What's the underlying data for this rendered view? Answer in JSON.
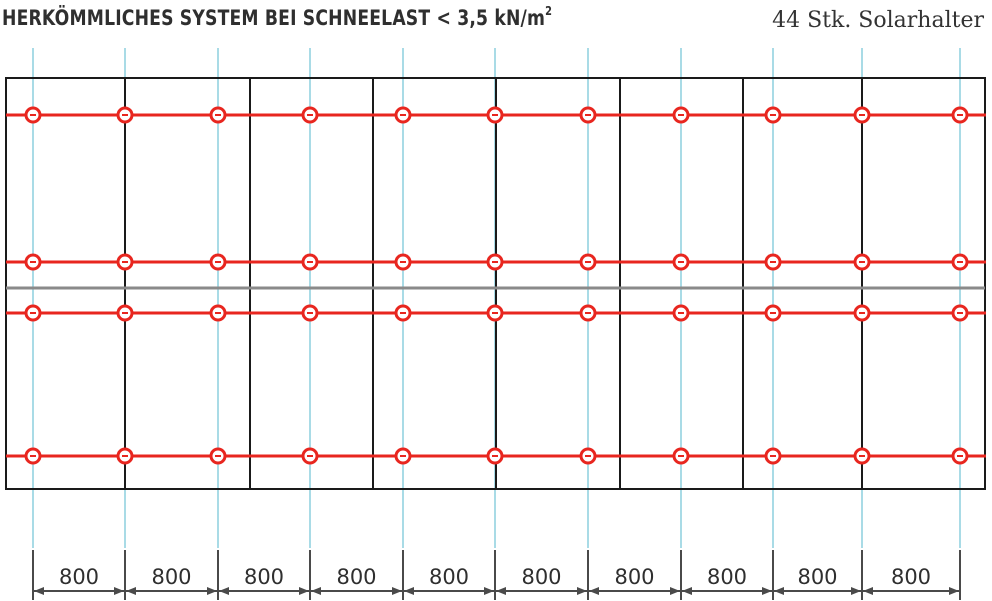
{
  "header": {
    "title_main": "HERKÖMMLICHES SYSTEM BEI SCHNEELAST < 3,5 kN/m",
    "title_sup": "2",
    "holder_count": "44 Stk. Solarhalter"
  },
  "dimensions": {
    "labels": [
      "800",
      "800",
      "800",
      "800",
      "800",
      "800",
      "800",
      "800",
      "800",
      "800"
    ]
  },
  "colors": {
    "rail": "#e8261f",
    "panel_border": "#1a1a1a",
    "rafter": "#a9dbe6",
    "dimension": "#4a4a4a",
    "row_divider": "#8a8a8a"
  },
  "icons": {
    "holder": "solar-holder-clamp-icon"
  }
}
